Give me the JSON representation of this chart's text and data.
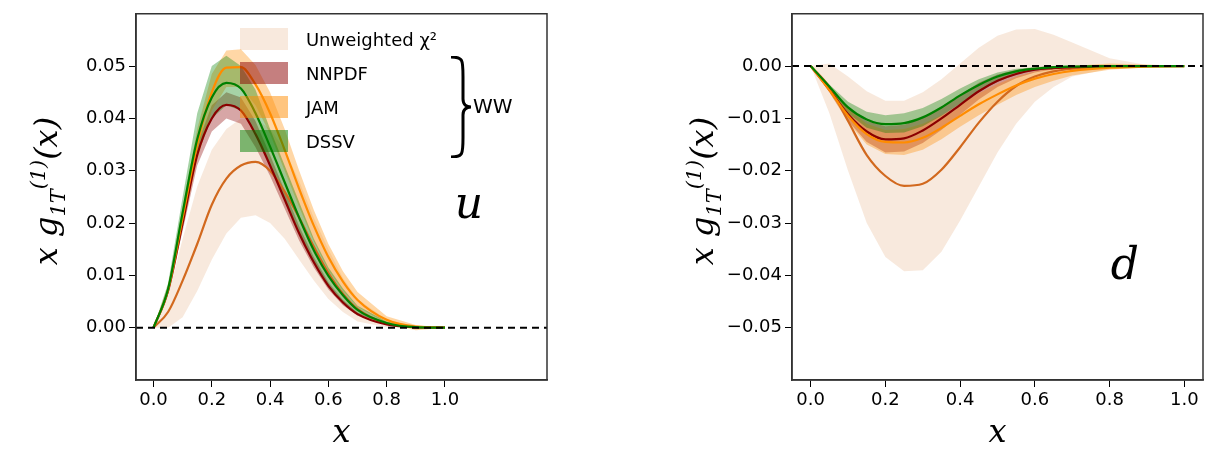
{
  "chart_data": [
    {
      "type": "line",
      "xlabel": "x",
      "ylabel": "x g$_{1T}$$^{(1)}$(x)",
      "legend": "top right",
      "marker": "none",
      "x": [
        0,
        0.05,
        0.1,
        0.15,
        0.2,
        0.25,
        0.3,
        0.35,
        0.4,
        0.45,
        0.5,
        0.55,
        0.6,
        0.65,
        0.7,
        0.8,
        0.9,
        1.0
      ],
      "xlim": [
        -0.06,
        1.35
      ],
      "xticks": [
        {
          "value": 0,
          "label": "0.0"
        },
        {
          "value": 0.2,
          "label": "0.2"
        },
        {
          "value": 0.4,
          "label": "0.4"
        },
        {
          "value": 0.6,
          "label": "0.6"
        },
        {
          "value": 0.8,
          "label": "0.8"
        },
        {
          "value": 1,
          "label": "1.0"
        }
      ],
      "ylim": [
        -0.01,
        0.06
      ],
      "yticks": [
        {
          "value": 0,
          "label": "0.00"
        },
        {
          "value": 0.01,
          "label": "0.01"
        },
        {
          "value": 0.02,
          "label": "0.02"
        },
        {
          "value": 0.03,
          "label": "0.03"
        },
        {
          "value": 0.04,
          "label": "0.04"
        },
        {
          "value": 0.05,
          "label": "0.05"
        }
      ],
      "ref_lines": [
        {
          "axis": "y",
          "value": 0,
          "color": "#000000",
          "line_style": "dashed"
        }
      ],
      "annotations": [
        "u",
        "WW"
      ],
      "series": [
        {
          "name": "Unweighted χ²",
          "color": "#d2691e",
          "values": [
            0,
            0.003,
            0.009,
            0.016,
            0.0235,
            0.0285,
            0.031,
            0.0317,
            0.03,
            0.026,
            0.021,
            0.0155,
            0.0105,
            0.0065,
            0.0036,
            0.0008,
            0.0001,
            0
          ],
          "lower": [
            0,
            0,
            0.002,
            0.007,
            0.013,
            0.018,
            0.021,
            0.0215,
            0.02,
            0.017,
            0.013,
            0.009,
            0.0055,
            0.003,
            0.0012,
            0.0001,
            0,
            0
          ],
          "upper": [
            0,
            0.006,
            0.017,
            0.027,
            0.034,
            0.038,
            0.04,
            0.04,
            0.038,
            0.034,
            0.028,
            0.021,
            0.015,
            0.0095,
            0.0055,
            0.0015,
            0.0002,
            0
          ]
        },
        {
          "name": "NNPDF",
          "color": "#8b0000",
          "values": [
            0,
            0.007,
            0.02,
            0.033,
            0.04,
            0.0426,
            0.0415,
            0.037,
            0.031,
            0.0245,
            0.018,
            0.0125,
            0.008,
            0.0048,
            0.0026,
            0.0006,
            0.0001,
            0
          ],
          "lower": [
            0,
            0.0065,
            0.0185,
            0.031,
            0.0375,
            0.04,
            0.039,
            0.0345,
            0.029,
            0.0228,
            0.0166,
            0.0115,
            0.0073,
            0.0043,
            0.0023,
            0.0005,
            0,
            0
          ],
          "upper": [
            0,
            0.0075,
            0.0215,
            0.035,
            0.0425,
            0.045,
            0.044,
            0.0395,
            0.033,
            0.0262,
            0.0194,
            0.0135,
            0.0087,
            0.0053,
            0.0029,
            0.0007,
            0.0001,
            0
          ]
        },
        {
          "name": "JAM",
          "color": "#ff8c00",
          "values": [
            0,
            0.0072,
            0.021,
            0.035,
            0.045,
            0.0497,
            0.0498,
            0.0465,
            0.041,
            0.034,
            0.0265,
            0.0195,
            0.0135,
            0.0088,
            0.0053,
            0.0015,
            0.0002,
            0
          ],
          "lower": [
            0,
            0.0065,
            0.019,
            0.032,
            0.0415,
            0.046,
            0.046,
            0.0425,
            0.037,
            0.03,
            0.023,
            0.0165,
            0.011,
            0.007,
            0.004,
            0.0008,
            -0.0005,
            0
          ],
          "upper": [
            0,
            0.008,
            0.023,
            0.038,
            0.0485,
            0.053,
            0.0532,
            0.0502,
            0.045,
            0.038,
            0.03,
            0.0225,
            0.016,
            0.0108,
            0.0068,
            0.0022,
            0.0005,
            0
          ]
        },
        {
          "name": "DSSV",
          "color": "#008000",
          "values": [
            0,
            0.0074,
            0.022,
            0.036,
            0.044,
            0.0468,
            0.0457,
            0.041,
            0.0346,
            0.0278,
            0.021,
            0.0148,
            0.0099,
            0.0062,
            0.0034,
            0.0009,
            0.0001,
            0
          ],
          "lower": [
            0,
            0.0068,
            0.02,
            0.033,
            0.04,
            0.0425,
            0.0415,
            0.037,
            0.031,
            0.0245,
            0.018,
            0.0125,
            0.008,
            0.0048,
            0.0026,
            0.0006,
            0,
            0
          ],
          "upper": [
            0,
            0.0085,
            0.025,
            0.041,
            0.05,
            0.052,
            0.05,
            0.0455,
            0.038,
            0.031,
            0.024,
            0.017,
            0.0115,
            0.0075,
            0.0042,
            0.0012,
            0.0002,
            0
          ]
        }
      ]
    },
    {
      "type": "line",
      "xlabel": "x",
      "ylabel": "x g$_{1T}$$^{(1)}$(x)",
      "marker": "none",
      "x": [
        0,
        0.05,
        0.1,
        0.15,
        0.2,
        0.25,
        0.3,
        0.35,
        0.4,
        0.45,
        0.5,
        0.55,
        0.6,
        0.65,
        0.7,
        0.8,
        0.9,
        1.0
      ],
      "xlim": [
        -0.05,
        1.05
      ],
      "xticks": [
        {
          "value": 0,
          "label": "0.0"
        },
        {
          "value": 0.2,
          "label": "0.2"
        },
        {
          "value": 0.4,
          "label": "0.4"
        },
        {
          "value": 0.6,
          "label": "0.6"
        },
        {
          "value": 0.8,
          "label": "0.8"
        },
        {
          "value": 1,
          "label": "1.0"
        }
      ],
      "ylim": [
        -0.06,
        0.01
      ],
      "yticks": [
        {
          "value": 0,
          "label": "0.00"
        },
        {
          "value": -0.01,
          "label": "−0.01"
        },
        {
          "value": -0.02,
          "label": "−0.02"
        },
        {
          "value": -0.03,
          "label": "−0.03"
        },
        {
          "value": -0.04,
          "label": "−0.04"
        },
        {
          "value": -0.05,
          "label": "−0.05"
        }
      ],
      "ref_lines": [
        {
          "axis": "y",
          "value": 0,
          "color": "#000000",
          "line_style": "dashed"
        }
      ],
      "annotations": [
        "d"
      ],
      "series": [
        {
          "color": "#d2691e",
          "values": [
            0,
            -0.004,
            -0.0105,
            -0.017,
            -0.021,
            -0.0229,
            -0.0225,
            -0.0198,
            -0.0155,
            -0.0108,
            -0.0068,
            -0.0038,
            -0.002,
            -0.001,
            -0.0005,
            -0.0001,
            0,
            0
          ],
          "lower": [
            0,
            -0.009,
            -0.02,
            -0.03,
            -0.0365,
            -0.0392,
            -0.039,
            -0.0355,
            -0.0295,
            -0.023,
            -0.0165,
            -0.011,
            -0.0068,
            -0.004,
            -0.002,
            -0.0005,
            -0.0001,
            0
          ],
          "upper": [
            0,
            0.0005,
            -0.002,
            -0.0048,
            -0.0066,
            -0.0066,
            -0.005,
            -0.0025,
            0.0005,
            0.0035,
            0.0058,
            0.007,
            0.0071,
            0.006,
            0.0045,
            0.0015,
            0.0002,
            0
          ]
        },
        {
          "color": "#8b0000",
          "values": [
            0,
            -0.0045,
            -0.0092,
            -0.0125,
            -0.014,
            -0.0138,
            -0.0123,
            -0.01,
            -0.0074,
            -0.0048,
            -0.0028,
            -0.0015,
            -0.0007,
            -0.0004,
            -0.0002,
            0,
            null,
            null
          ],
          "lower": [
            0,
            -0.005,
            -0.0105,
            -0.0145,
            -0.0165,
            -0.0163,
            -0.0147,
            -0.0122,
            -0.0093,
            -0.0064,
            -0.004,
            -0.0023,
            -0.0012,
            -0.0006,
            -0.0003,
            -0.0001,
            0,
            0
          ],
          "upper": [
            0,
            -0.004,
            -0.008,
            -0.0105,
            -0.0115,
            -0.0112,
            -0.0098,
            -0.0077,
            -0.0055,
            -0.0032,
            -0.0016,
            -0.0007,
            -0.0002,
            0,
            0,
            0,
            0,
            0
          ]
        },
        {
          "color": "#ff8c00",
          "values": [
            0,
            -0.0046,
            -0.0095,
            -0.013,
            -0.0145,
            -0.0146,
            -0.0137,
            -0.0118,
            -0.0095,
            -0.0073,
            -0.0054,
            -0.0037,
            -0.0024,
            -0.0015,
            -0.0009,
            -0.0003,
            -0.0001,
            0
          ],
          "lower": [
            0,
            -0.005,
            -0.0108,
            -0.015,
            -0.0168,
            -0.017,
            -0.016,
            -0.014,
            -0.0116,
            -0.0094,
            -0.0074,
            -0.0055,
            -0.004,
            -0.0028,
            -0.0018,
            -0.0007,
            -0.0002,
            0
          ],
          "upper": [
            0,
            -0.004,
            -0.0082,
            -0.011,
            -0.0122,
            -0.012,
            -0.011,
            -0.0094,
            -0.0074,
            -0.0052,
            -0.0034,
            -0.002,
            -0.001,
            -0.0004,
            0,
            0.0005,
            0.0003,
            0
          ]
        },
        {
          "color": "#008000",
          "values": [
            0,
            -0.0039,
            -0.0079,
            -0.0102,
            -0.0111,
            -0.0109,
            -0.0098,
            -0.0079,
            -0.0056,
            -0.0036,
            -0.002,
            -0.001,
            -0.0005,
            -0.0002,
            -0.0001,
            0,
            0,
            0
          ],
          "lower": [
            0,
            -0.0043,
            -0.009,
            -0.0118,
            -0.0128,
            -0.0127,
            -0.0115,
            -0.0095,
            -0.0072,
            -0.0049,
            -0.003,
            -0.0016,
            -0.0008,
            -0.0004,
            -0.0002,
            0,
            0,
            0
          ],
          "upper": [
            0,
            -0.0035,
            -0.0068,
            -0.0087,
            -0.0094,
            -0.009,
            -0.008,
            -0.0063,
            -0.0043,
            -0.0025,
            -0.0012,
            -0.0005,
            -0.0002,
            0,
            0,
            0,
            0,
            0
          ]
        }
      ]
    }
  ]
}
